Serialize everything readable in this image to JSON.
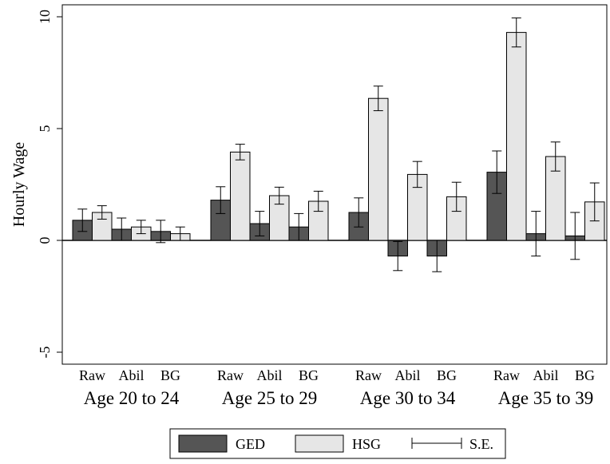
{
  "chart_data": {
    "type": "bar",
    "ylabel": "Hourly Wage",
    "ylim": [
      -5.5,
      10.5
    ],
    "yticks": [
      -5,
      0,
      5,
      10
    ],
    "grid": false,
    "legend_position": "bottom",
    "groups": [
      {
        "label": "Age 20 to 24",
        "subcategories": [
          "Raw",
          "Abil",
          "BG"
        ]
      },
      {
        "label": "Age 25 to 29",
        "subcategories": [
          "Raw",
          "Abil",
          "BG"
        ]
      },
      {
        "label": "Age 30 to 34",
        "subcategories": [
          "Raw",
          "Abil",
          "BG"
        ]
      },
      {
        "label": "Age 35 to 39",
        "subcategories": [
          "Raw",
          "Abil",
          "BG"
        ]
      }
    ],
    "series": [
      {
        "name": "GED",
        "color": "#555555",
        "values": [
          0.9,
          0.5,
          0.4,
          1.8,
          0.75,
          0.6,
          1.25,
          -0.7,
          -0.7,
          3.05,
          0.3,
          0.2
        ],
        "se": [
          0.5,
          0.5,
          0.5,
          0.6,
          0.55,
          0.6,
          0.65,
          0.65,
          0.7,
          0.95,
          1.0,
          1.05
        ]
      },
      {
        "name": "HSG",
        "color": "#e6e6e6",
        "values": [
          1.25,
          0.6,
          0.3,
          3.95,
          2.0,
          1.75,
          6.35,
          2.95,
          1.95,
          9.3,
          3.75,
          1.72
        ],
        "se": [
          0.3,
          0.3,
          0.3,
          0.35,
          0.38,
          0.45,
          0.55,
          0.58,
          0.65,
          0.65,
          0.65,
          0.85
        ]
      }
    ],
    "legend": {
      "entries": [
        "GED",
        "HSG"
      ],
      "se_label": "S.E."
    }
  }
}
